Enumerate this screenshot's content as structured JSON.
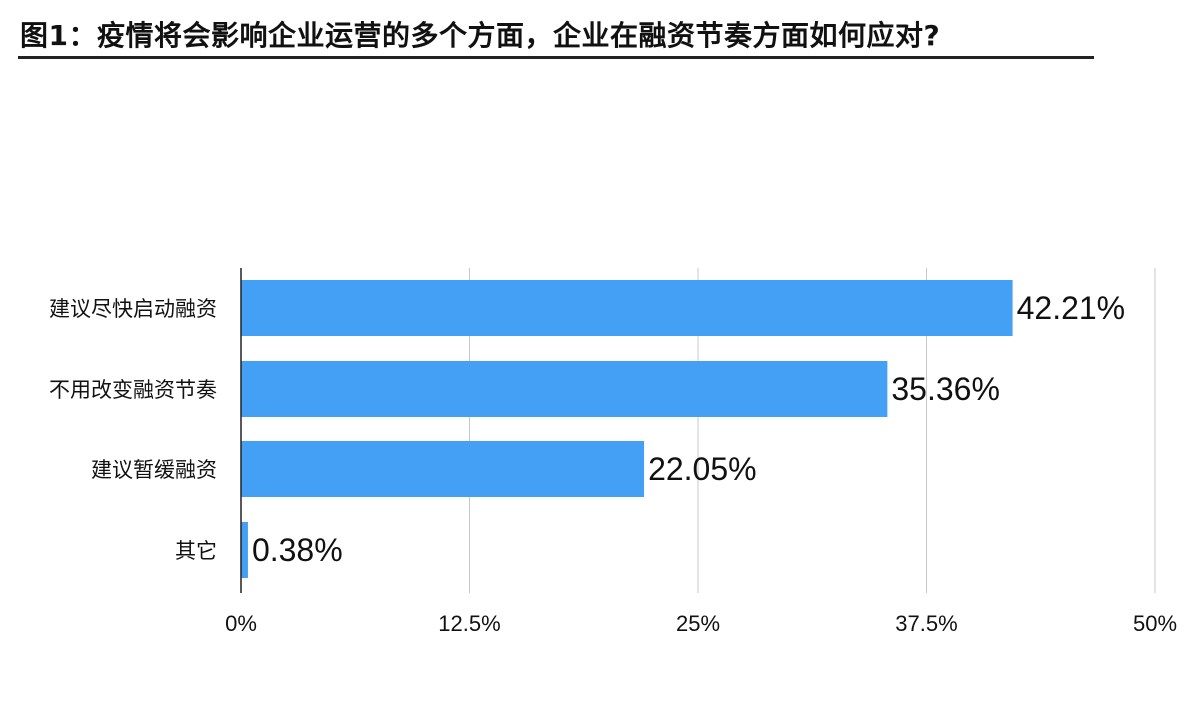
{
  "chart_data": {
    "type": "bar",
    "orientation": "horizontal",
    "title": "图1：疫情将会影响企业运营的多个方面，企业在融资节奏方面如何应对?",
    "categories": [
      "建议尽快启动融资",
      "不用改变融资节奏",
      "建议暂缓融资",
      "其它"
    ],
    "values": [
      42.21,
      35.36,
      22.05,
      0.38
    ],
    "value_labels": [
      "42.21%",
      "35.36%",
      "22.05%",
      "0.38%"
    ],
    "xlim": [
      0,
      50
    ],
    "x_ticks": [
      0,
      12.5,
      25,
      37.5,
      50
    ],
    "x_tick_labels": [
      "0%",
      "12.5%",
      "25%",
      "37.5%",
      "50%"
    ],
    "grid": true,
    "xlabel": "",
    "ylabel": "",
    "colors": {
      "bar": "#44a0f5",
      "grid": "#c8c8c8",
      "axis": "#222222",
      "text": "#111111"
    }
  }
}
